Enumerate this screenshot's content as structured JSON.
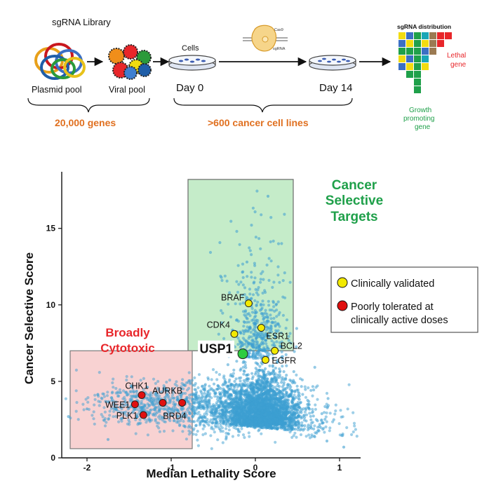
{
  "workflow": {
    "library_title": "sgRNA Library",
    "plasmid_label": "Plasmid pool",
    "viral_label": "Viral pool",
    "cells_label": "Cells",
    "cas9_label": "Cas9",
    "sgrna_label": "sgRNA",
    "day0_label": "Day 0",
    "day14_label": "Day 14",
    "genes_count": "20,000 genes",
    "cell_lines": ">600 cancer cell lines",
    "distribution_title": "sgRNA distribution",
    "lethal_line1": "Lethal",
    "lethal_line2": "gene",
    "growth_line1": "Growth",
    "growth_line2": "promoting",
    "growth_line3": "gene",
    "accent_orange": "#e07020",
    "accent_red": "#e8262a",
    "accent_green": "#1fa04a"
  },
  "regions": {
    "cancer_selective_line1": "Cancer",
    "cancer_selective_line2": "Selective",
    "cancer_selective_line3": "Targets",
    "broadly_line1": "Broadly",
    "broadly_line2": "Cytotoxic",
    "highlight_gene": "USP1"
  },
  "legend": {
    "clinical": "Clinically validated",
    "poor_line1": "Poorly tolerated at",
    "poor_line2": "clinically active doses"
  },
  "chart_data": {
    "type": "scatter",
    "xlabel": "Median Lethality Score",
    "ylabel": "Cancer Selective Score",
    "xlim": [
      -2.3,
      1.25
    ],
    "ylim": [
      0,
      18.7
    ],
    "xticks": [
      -2,
      -1,
      0,
      1
    ],
    "yticks": [
      0,
      5,
      10,
      15
    ],
    "grid": false,
    "legend_position": "right",
    "regions": [
      {
        "name": "Cancer Selective Targets",
        "x": [
          -0.8,
          0.45
        ],
        "y": [
          7.0,
          18.2
        ],
        "color": "#c5ecc9"
      },
      {
        "name": "Broadly Cytotoxic",
        "x": [
          -2.2,
          -0.75
        ],
        "y": [
          0.6,
          7.0
        ],
        "color": "#f8d2d2"
      }
    ],
    "series": [
      {
        "name": "Clinically validated",
        "color": "#f2e900",
        "points": [
          {
            "label": "BRAF",
            "x": -0.08,
            "y": 10.1
          },
          {
            "label": "CDK4",
            "x": -0.25,
            "y": 8.1
          },
          {
            "label": "ESR1",
            "x": 0.07,
            "y": 8.5
          },
          {
            "label": "BCL2",
            "x": 0.23,
            "y": 7.0
          },
          {
            "label": "EGFR",
            "x": 0.12,
            "y": 6.4
          }
        ]
      },
      {
        "name": "Poorly tolerated at clinically active doses",
        "color": "#e01010",
        "points": [
          {
            "label": "CHK1",
            "x": -1.35,
            "y": 4.1
          },
          {
            "label": "WEE1",
            "x": -1.43,
            "y": 3.5
          },
          {
            "label": "AURKB",
            "x": -1.1,
            "y": 3.6
          },
          {
            "label": "BRD4",
            "x": -0.87,
            "y": 3.6
          },
          {
            "label": "PLK1",
            "x": -1.33,
            "y": 2.8
          }
        ]
      },
      {
        "name": "USP1",
        "color": "#2ecc40",
        "points": [
          {
            "label": "USP1",
            "x": -0.15,
            "y": 6.8
          }
        ]
      }
    ]
  }
}
